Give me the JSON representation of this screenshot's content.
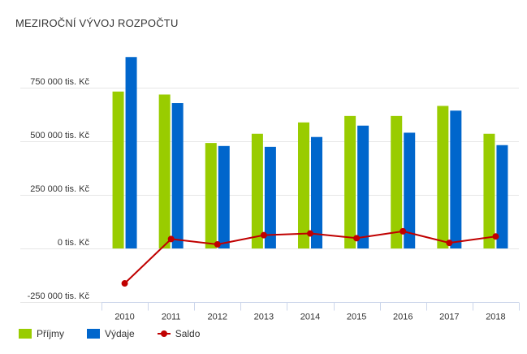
{
  "chart_data": {
    "type": "bar",
    "title": "MEZIROČNÍ VÝVOJ ROZPOČTU",
    "categories": [
      "2010",
      "2011",
      "2012",
      "2013",
      "2014",
      "2015",
      "2016",
      "2017",
      "2018"
    ],
    "series": [
      {
        "name": "Příjmy",
        "type": "bar",
        "color": "#99cc00",
        "values": [
          732000,
          718000,
          492000,
          535000,
          588000,
          618000,
          618000,
          665000,
          535000
        ]
      },
      {
        "name": "Výdaje",
        "type": "bar",
        "color": "#0066cc",
        "values": [
          893000,
          678000,
          478000,
          474000,
          520000,
          573000,
          540000,
          643000,
          482000
        ]
      },
      {
        "name": "Saldo",
        "type": "line",
        "color": "#c00000",
        "values": [
          -163000,
          44000,
          19000,
          62000,
          70000,
          48000,
          80000,
          26000,
          56000
        ]
      }
    ],
    "y_ticks": [
      {
        "value": -250000,
        "label": "-250 000 tis. Kč"
      },
      {
        "value": 0,
        "label": "0 tis. Kč"
      },
      {
        "value": 250000,
        "label": "250 000 tis. Kč"
      },
      {
        "value": 500000,
        "label": "500 000 tis. Kč"
      },
      {
        "value": 750000,
        "label": "750 000 tis. Kč"
      }
    ],
    "ylim": [
      -250000,
      1000000
    ],
    "xlabel": "",
    "ylabel": "",
    "grid": true,
    "legend_position": "bottom-left",
    "colors": {
      "grid": "#e6e6e6",
      "axis": "#ccd6eb",
      "text": "#333333"
    }
  }
}
